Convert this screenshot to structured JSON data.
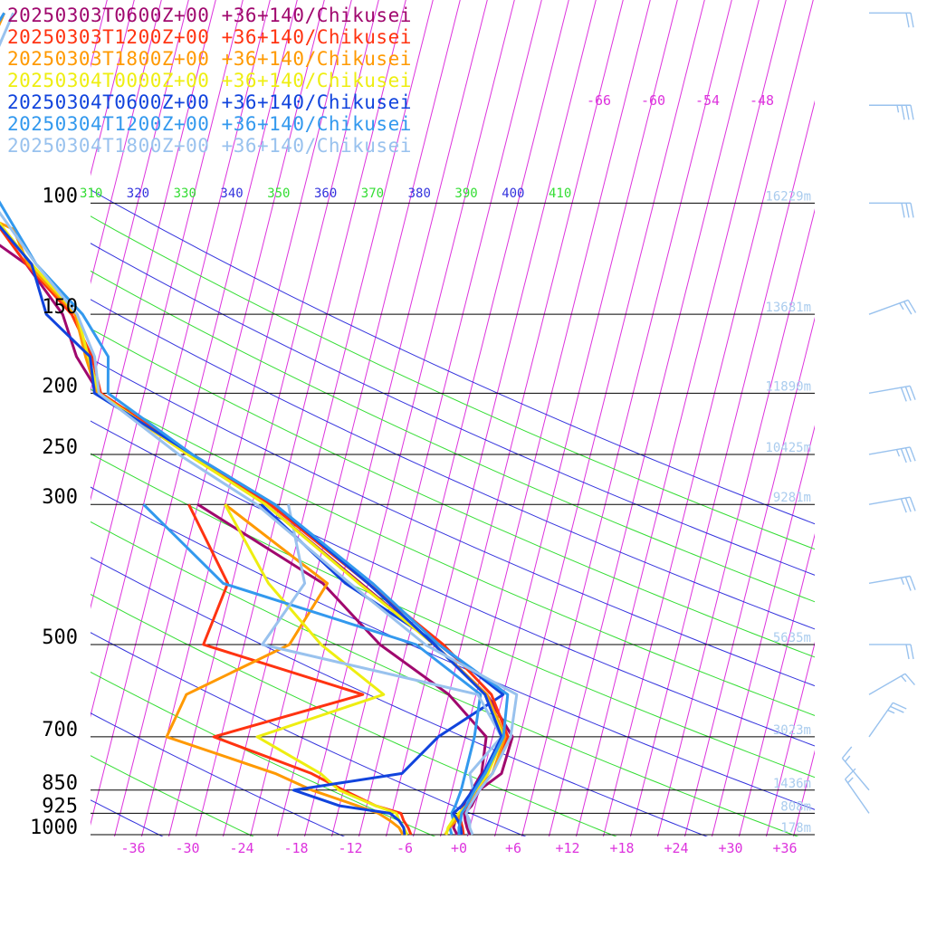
{
  "colors": {
    "isotherm": "#dd33dd",
    "dry_adiabat_blue": "#3333dd",
    "dry_adiabat_green": "#33dd33",
    "isobar": "#000000",
    "height_label": "#aaccee",
    "wind_barb": "#99c2ee"
  },
  "chart_data": {
    "type": "line",
    "subtype": "skew-T sounding",
    "x_ticks": [
      "-36",
      "-30",
      "-24",
      "-18",
      "-12",
      "-6",
      "+0",
      "+6",
      "+12",
      "+18",
      "+24",
      "+30",
      "+36"
    ],
    "x_tick_values": [
      -36,
      -30,
      -24,
      -18,
      -12,
      -6,
      0,
      6,
      12,
      18,
      24,
      30,
      36
    ],
    "y_ticks": [
      "100",
      "150",
      "200",
      "250",
      "300",
      "500",
      "700",
      "850",
      "925",
      "1000"
    ],
    "y_tick_values": [
      100,
      150,
      200,
      250,
      300,
      500,
      700,
      850,
      925,
      1000
    ],
    "isotherm_top_labels": [
      "-66",
      "-60",
      "-54",
      "-48"
    ],
    "theta_labels": [
      {
        "text": "310",
        "color": "#33dd33"
      },
      {
        "text": "320",
        "color": "#3333dd"
      },
      {
        "text": "330",
        "color": "#33dd33"
      },
      {
        "text": "340",
        "color": "#3333dd"
      },
      {
        "text": "350",
        "color": "#33dd33"
      },
      {
        "text": "360",
        "color": "#3333dd"
      },
      {
        "text": "370",
        "color": "#33dd33"
      },
      {
        "text": "380",
        "color": "#3333dd"
      },
      {
        "text": "390",
        "color": "#33dd33"
      },
      {
        "text": "400",
        "color": "#3333dd"
      },
      {
        "text": "410",
        "color": "#33dd33"
      }
    ],
    "heights": [
      {
        "p": 100,
        "label": "16229m"
      },
      {
        "p": 150,
        "label": "13681m"
      },
      {
        "p": 200,
        "label": "11890m"
      },
      {
        "p": 250,
        "label": "10425m"
      },
      {
        "p": 300,
        "label": "9281m"
      },
      {
        "p": 500,
        "label": "5635m"
      },
      {
        "p": 700,
        "label": "3023m"
      },
      {
        "p": 850,
        "label": "1436m"
      },
      {
        "p": 925,
        "label": "808m"
      },
      {
        "p": 1000,
        "label": "178m"
      }
    ],
    "series": [
      {
        "name": "20250303T0600Z+00 +36+140/Chikusei",
        "color": "#a0086e",
        "temp": [
          [
            1000,
            1.2
          ],
          [
            975,
            0.7
          ],
          [
            950,
            0.3
          ],
          [
            925,
            0.0
          ],
          [
            900,
            0.6
          ],
          [
            850,
            1.0
          ],
          [
            800,
            3.0
          ],
          [
            700,
            3.2
          ],
          [
            600,
            -0.8
          ],
          [
            500,
            -8.0
          ],
          [
            400,
            -17.8
          ],
          [
            300,
            -30.5
          ],
          [
            250,
            -40.2
          ],
          [
            225,
            -46.0
          ],
          [
            200,
            -52.0
          ],
          [
            175,
            -55.5
          ],
          [
            150,
            -58.2
          ],
          [
            125,
            -63.6
          ],
          [
            110,
            -70.0
          ],
          [
            100,
            -71.3
          ],
          [
            80,
            -74.0
          ],
          [
            70,
            -78.0
          ],
          [
            60,
            -76.0
          ],
          [
            50,
            -76.0
          ]
        ],
        "dew": [
          [
            1000,
            -0.2
          ],
          [
            975,
            -0.8
          ],
          [
            950,
            -0.8
          ],
          [
            925,
            -0.5
          ],
          [
            900,
            -0.2
          ],
          [
            850,
            0.2
          ],
          [
            800,
            0.8
          ],
          [
            700,
            0.3
          ],
          [
            600,
            -5.0
          ],
          [
            500,
            -14.0
          ],
          [
            400,
            -22.0
          ],
          [
            300,
            -38.0
          ]
        ]
      },
      {
        "name": "20250303T1200Z+00 +36+140/Chikusei",
        "color": "#ff3311",
        "temp": [
          [
            1000,
            0.5
          ],
          [
            975,
            0.2
          ],
          [
            950,
            -0.2
          ],
          [
            925,
            -0.6
          ],
          [
            900,
            0.2
          ],
          [
            850,
            0.9
          ],
          [
            800,
            2.0
          ],
          [
            700,
            2.7
          ],
          [
            600,
            -0.3
          ],
          [
            500,
            -7.0
          ],
          [
            400,
            -17.0
          ],
          [
            300,
            -30.0
          ],
          [
            250,
            -40.0
          ],
          [
            200,
            -51.8
          ],
          [
            175,
            -53.8
          ],
          [
            150,
            -57.2
          ],
          [
            125,
            -63.6
          ],
          [
            100,
            -70.2
          ],
          [
            80,
            -72.0
          ],
          [
            60,
            -74.0
          ],
          [
            50,
            -74.0
          ]
        ],
        "dew": [
          [
            1000,
            -5.3
          ],
          [
            975,
            -5.8
          ],
          [
            950,
            -6.5
          ],
          [
            925,
            -7.0
          ],
          [
            900,
            -10.0
          ],
          [
            850,
            -14.0
          ],
          [
            800,
            -18.0
          ],
          [
            700,
            -29.8
          ],
          [
            600,
            -14.5
          ],
          [
            500,
            -33.5
          ],
          [
            400,
            -32.5
          ],
          [
            300,
            -39.0
          ]
        ]
      },
      {
        "name": "20250303T1800Z+00 +36+140/Chikusei",
        "color": "#ff9900",
        "temp": [
          [
            1000,
            -1.5
          ],
          [
            975,
            -1.3
          ],
          [
            950,
            -0.7
          ],
          [
            925,
            -0.3
          ],
          [
            900,
            0.0
          ],
          [
            850,
            0.6
          ],
          [
            800,
            2.0
          ],
          [
            700,
            2.4
          ],
          [
            600,
            -0.8
          ],
          [
            500,
            -8.0
          ],
          [
            400,
            -18.0
          ],
          [
            300,
            -30.5
          ],
          [
            250,
            -40.5
          ],
          [
            200,
            -52.2
          ],
          [
            175,
            -54.5
          ],
          [
            150,
            -56.8
          ],
          [
            125,
            -63.4
          ],
          [
            110,
            -66.0
          ],
          [
            100,
            -73.0
          ],
          [
            80,
            -78.0
          ],
          [
            70,
            -76.0
          ],
          [
            60,
            -74.0
          ],
          [
            50,
            -73.0
          ]
        ],
        "dew": [
          [
            1000,
            -6.2
          ],
          [
            975,
            -6.8
          ],
          [
            950,
            -8.0
          ],
          [
            925,
            -9.5
          ],
          [
            900,
            -12.0
          ],
          [
            850,
            -17.5
          ],
          [
            800,
            -22.0
          ],
          [
            700,
            -35.0
          ],
          [
            600,
            -34.0
          ],
          [
            500,
            -24.0
          ],
          [
            400,
            -21.5
          ],
          [
            300,
            -35.0
          ]
        ]
      },
      {
        "name": "20250304T0000Z+00 +36+140/Chikusei",
        "color": "#eeee11",
        "temp": [
          [
            1000,
            -1.4
          ],
          [
            975,
            -1.4
          ],
          [
            950,
            -1.1
          ],
          [
            925,
            -0.6
          ],
          [
            900,
            0.0
          ],
          [
            850,
            0.6
          ],
          [
            800,
            1.5
          ],
          [
            700,
            2.2
          ],
          [
            600,
            -1.0
          ],
          [
            500,
            -8.0
          ],
          [
            400,
            -18.0
          ],
          [
            300,
            -30.5
          ],
          [
            250,
            -40.5
          ],
          [
            200,
            -52.0
          ],
          [
            175,
            -54.2
          ],
          [
            150,
            -56.6
          ],
          [
            125,
            -63.0
          ],
          [
            100,
            -70.0
          ],
          [
            80,
            -76.0
          ],
          [
            60,
            -75.0
          ],
          [
            50,
            -74.0
          ]
        ],
        "dew": [
          [
            1000,
            -5.7
          ],
          [
            975,
            -6.3
          ],
          [
            950,
            -7.0
          ],
          [
            925,
            -7.5
          ],
          [
            900,
            -10.0
          ],
          [
            850,
            -14.5
          ],
          [
            800,
            -17.0
          ],
          [
            700,
            -25.0
          ],
          [
            600,
            -12.2
          ],
          [
            500,
            -20.5
          ],
          [
            400,
            -28.0
          ],
          [
            300,
            -35.0
          ]
        ]
      },
      {
        "name": "20250304T0600Z+00 +36+140/Chikusei",
        "color": "#1144dd",
        "temp": [
          [
            1000,
            0.3
          ],
          [
            975,
            0.0
          ],
          [
            950,
            -0.5
          ],
          [
            925,
            -1.2
          ],
          [
            900,
            -0.5
          ],
          [
            850,
            0.3
          ],
          [
            800,
            1.0
          ],
          [
            700,
            2.0
          ],
          [
            600,
            -1.0
          ],
          [
            500,
            -8.0
          ],
          [
            400,
            -17.0
          ],
          [
            300,
            -29.5
          ],
          [
            250,
            -40.0
          ],
          [
            200,
            -52.5
          ],
          [
            175,
            -54.0
          ],
          [
            160,
            -57.5
          ],
          [
            150,
            -60.0
          ],
          [
            125,
            -63.0
          ],
          [
            100,
            -70.4
          ],
          [
            80,
            -74.0
          ],
          [
            70,
            -77.0
          ],
          [
            60,
            -75.0
          ],
          [
            50,
            -74.0
          ]
        ],
        "dew": [
          [
            1000,
            -6.0
          ],
          [
            975,
            -6.3
          ],
          [
            950,
            -7.0
          ],
          [
            925,
            -8.2
          ],
          [
            900,
            -14.0
          ],
          [
            850,
            -19.5
          ],
          [
            800,
            -8.0
          ],
          [
            700,
            -5.0
          ],
          [
            600,
            1.0
          ],
          [
            500,
            -7.5
          ],
          [
            400,
            -19.5
          ],
          [
            300,
            -31.0
          ]
        ]
      },
      {
        "name": "20250304T1200Z+00 +36+140/Chikusei",
        "color": "#3399ee",
        "temp": [
          [
            1000,
            0.0
          ],
          [
            975,
            -0.2
          ],
          [
            950,
            -0.2
          ],
          [
            925,
            -0.3
          ],
          [
            900,
            0.0
          ],
          [
            850,
            0.5
          ],
          [
            800,
            1.2
          ],
          [
            700,
            2.2
          ],
          [
            600,
            1.5
          ],
          [
            500,
            -7.5
          ],
          [
            400,
            -16.5
          ],
          [
            300,
            -29.5
          ],
          [
            250,
            -40.0
          ],
          [
            200,
            -51.0
          ],
          [
            175,
            -52.0
          ],
          [
            150,
            -56.0
          ],
          [
            125,
            -62.5
          ],
          [
            100,
            -68.2
          ],
          [
            80,
            -74.0
          ],
          [
            70,
            -76.0
          ],
          [
            60,
            -75.0
          ],
          [
            50,
            -73.0
          ]
        ],
        "dew": [
          [
            1000,
            -0.8
          ],
          [
            975,
            -1.2
          ],
          [
            950,
            -1.0
          ],
          [
            925,
            -1.4
          ],
          [
            900,
            -1.2
          ],
          [
            850,
            -1.0
          ],
          [
            800,
            -1.0
          ],
          [
            700,
            -1.0
          ],
          [
            600,
            -1.5
          ],
          [
            500,
            -10.0
          ],
          [
            400,
            -33.0
          ],
          [
            300,
            -44.0
          ]
        ]
      },
      {
        "name": "20250304T1800Z+00 +36+140/Chikusei",
        "color": "#99c2ee",
        "temp": [
          [
            1000,
            1.5
          ],
          [
            975,
            1.0
          ],
          [
            950,
            0.8
          ],
          [
            925,
            0.2
          ],
          [
            900,
            0.4
          ],
          [
            850,
            1.0
          ],
          [
            800,
            2.0
          ],
          [
            700,
            3.0
          ],
          [
            600,
            2.5
          ],
          [
            500,
            -9.0
          ],
          [
            400,
            -19.0
          ],
          [
            300,
            -31.5
          ],
          [
            250,
            -41.5
          ],
          [
            200,
            -52.0
          ],
          [
            175,
            -53.5
          ],
          [
            150,
            -56.6
          ],
          [
            125,
            -62.5
          ],
          [
            100,
            -69.0
          ],
          [
            80,
            -73.0
          ],
          [
            60,
            -73.0
          ],
          [
            50,
            -72.0
          ]
        ],
        "dew": [
          [
            1000,
            1.0
          ],
          [
            975,
            1.0
          ],
          [
            950,
            0.6
          ],
          [
            925,
            0.0
          ],
          [
            900,
            0.0
          ],
          [
            850,
            0.3
          ],
          [
            800,
            -0.5
          ],
          [
            700,
            2.0
          ],
          [
            600,
            -1.8
          ],
          [
            500,
            -27.0
          ],
          [
            400,
            -24.0
          ],
          [
            300,
            -28.0
          ]
        ]
      }
    ],
    "winds": [
      {
        "p": 50,
        "dir": 270,
        "spd": 20
      },
      {
        "p": 70,
        "dir": 270,
        "spd": 35
      },
      {
        "p": 100,
        "dir": 270,
        "spd": 30
      },
      {
        "p": 150,
        "dir": 250,
        "spd": 25
      },
      {
        "p": 200,
        "dir": 260,
        "spd": 30
      },
      {
        "p": 250,
        "dir": 260,
        "spd": 35
      },
      {
        "p": 300,
        "dir": 260,
        "spd": 30
      },
      {
        "p": 400,
        "dir": 260,
        "spd": 25
      },
      {
        "p": 500,
        "dir": 270,
        "spd": 20
      },
      {
        "p": 600,
        "dir": 240,
        "spd": 15
      },
      {
        "p": 700,
        "dir": 215,
        "spd": 25
      },
      {
        "p": 850,
        "dir": 140,
        "spd": 15
      },
      {
        "p": 925,
        "dir": 145,
        "spd": 15
      }
    ]
  }
}
